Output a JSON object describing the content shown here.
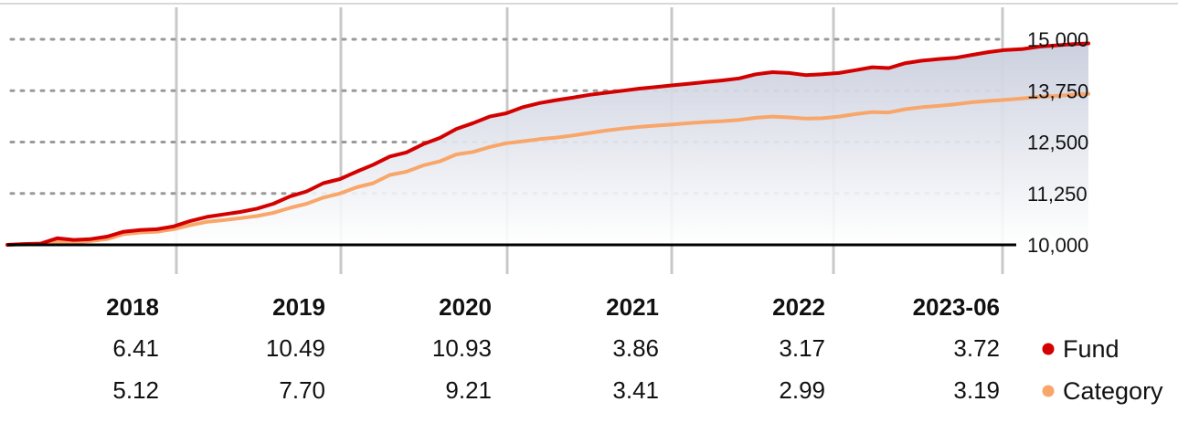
{
  "chart_data": {
    "type": "line",
    "y_ticks": [
      "15,000",
      "13,750",
      "12,500",
      "11,250",
      "10,000"
    ],
    "y_tick_values": [
      15000,
      13750,
      12500,
      11250,
      10000
    ],
    "ylim": [
      10000,
      15000
    ],
    "baseline": 10000,
    "x_range": [
      2017.0,
      2023.5
    ],
    "grid": "horizontal dotted, vertical solid",
    "area_fill_under": "Fund",
    "series": [
      {
        "name": "Fund",
        "color": "#d40000",
        "x": [
          2017.0,
          2017.1,
          2017.2,
          2017.3,
          2017.4,
          2017.5,
          2017.6,
          2017.7,
          2017.8,
          2017.9,
          2018.0,
          2018.1,
          2018.2,
          2018.3,
          2018.4,
          2018.5,
          2018.6,
          2018.7,
          2018.8,
          2018.9,
          2019.0,
          2019.1,
          2019.2,
          2019.3,
          2019.4,
          2019.5,
          2019.6,
          2019.7,
          2019.8,
          2019.9,
          2020.0,
          2020.1,
          2020.2,
          2020.3,
          2020.4,
          2020.5,
          2020.6,
          2020.7,
          2020.8,
          2020.9,
          2021.0,
          2021.1,
          2021.2,
          2021.3,
          2021.4,
          2021.5,
          2021.6,
          2021.7,
          2021.8,
          2021.9,
          2022.0,
          2022.1,
          2022.2,
          2022.3,
          2022.4,
          2022.5,
          2022.6,
          2022.7,
          2022.8,
          2022.9,
          2023.0,
          2023.1,
          2023.2,
          2023.3,
          2023.4,
          2023.5
        ],
        "values": [
          10000,
          10020,
          10030,
          10160,
          10120,
          10140,
          10200,
          10320,
          10360,
          10380,
          10450,
          10580,
          10680,
          10740,
          10800,
          10880,
          11000,
          11180,
          11300,
          11500,
          11600,
          11780,
          11950,
          12150,
          12250,
          12450,
          12600,
          12820,
          12960,
          13120,
          13200,
          13350,
          13450,
          13520,
          13580,
          13650,
          13700,
          13750,
          13800,
          13840,
          13880,
          13920,
          13960,
          14000,
          14050,
          14150,
          14200,
          14180,
          14130,
          14150,
          14180,
          14250,
          14320,
          14300,
          14420,
          14480,
          14520,
          14550,
          14620,
          14690,
          14740,
          14760,
          14820,
          14850,
          14880,
          14900
        ]
      },
      {
        "name": "Category",
        "color": "#f8a66a",
        "x": [
          2017.0,
          2017.1,
          2017.2,
          2017.3,
          2017.4,
          2017.5,
          2017.6,
          2017.7,
          2017.8,
          2017.9,
          2018.0,
          2018.1,
          2018.2,
          2018.3,
          2018.4,
          2018.5,
          2018.6,
          2018.7,
          2018.8,
          2018.9,
          2019.0,
          2019.1,
          2019.2,
          2019.3,
          2019.4,
          2019.5,
          2019.6,
          2019.7,
          2019.8,
          2019.9,
          2020.0,
          2020.1,
          2020.2,
          2020.3,
          2020.4,
          2020.5,
          2020.6,
          2020.7,
          2020.8,
          2020.9,
          2021.0,
          2021.1,
          2021.2,
          2021.3,
          2021.4,
          2021.5,
          2021.6,
          2021.7,
          2021.8,
          2021.9,
          2022.0,
          2022.1,
          2022.2,
          2022.3,
          2022.4,
          2022.5,
          2022.6,
          2022.7,
          2022.8,
          2022.9,
          2023.0,
          2023.1,
          2023.2,
          2023.3,
          2023.4,
          2023.5
        ],
        "values": [
          10000,
          10010,
          10020,
          10080,
          10060,
          10090,
          10140,
          10260,
          10300,
          10320,
          10380,
          10480,
          10560,
          10600,
          10650,
          10700,
          10780,
          10900,
          11000,
          11150,
          11250,
          11400,
          11500,
          11700,
          11780,
          11930,
          12030,
          12200,
          12260,
          12380,
          12470,
          12520,
          12570,
          12610,
          12660,
          12720,
          12780,
          12830,
          12870,
          12900,
          12930,
          12960,
          12990,
          13010,
          13040,
          13090,
          13120,
          13100,
          13070,
          13080,
          13120,
          13180,
          13230,
          13220,
          13300,
          13350,
          13380,
          13420,
          13470,
          13500,
          13530,
          13560,
          13600,
          13620,
          13650,
          13670
        ]
      }
    ],
    "years": [
      "2018",
      "2019",
      "2020",
      "2021",
      "2022",
      "2023-06"
    ],
    "fund_returns": [
      "6.41",
      "10.49",
      "10.93",
      "3.86",
      "3.17",
      "3.72"
    ],
    "category_returns": [
      "5.12",
      "7.70",
      "9.21",
      "3.41",
      "2.99",
      "3.19"
    ],
    "legend": [
      {
        "name": "Fund",
        "color": "#d40000"
      },
      {
        "name": "Category",
        "color": "#f8a66a"
      }
    ]
  }
}
